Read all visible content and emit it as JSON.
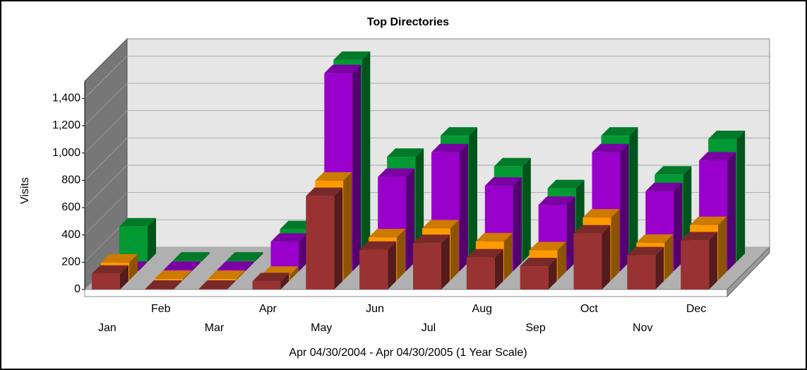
{
  "chart_data": {
    "type": "bar3d",
    "title": "Top Directories",
    "x_label": "Apr 04/30/2004 - Apr 04/30/2005 (1 Year Scale)",
    "y_label": "Visits",
    "categories": [
      "Jan",
      "Feb",
      "Mar",
      "Apr",
      "May",
      "Jun",
      "Jul",
      "Aug",
      "Sep",
      "Oct",
      "Nov",
      "Dec"
    ],
    "series": [
      {
        "color": "#993333",
        "values": [
          115,
          5,
          5,
          60,
          685,
          290,
          340,
          235,
          170,
          410,
          250,
          360
        ]
      },
      {
        "color": "#ff9900",
        "values": [
          130,
          10,
          10,
          40,
          730,
          315,
          380,
          285,
          220,
          460,
          275,
          405
        ]
      },
      {
        "color": "#9900cc",
        "values": [
          10,
          10,
          10,
          215,
          1450,
          690,
          870,
          625,
          485,
          870,
          585,
          810
        ]
      },
      {
        "color": "#009933",
        "values": [
          260,
          10,
          10,
          240,
          1480,
          770,
          925,
          700,
          540,
          925,
          640,
          900
        ]
      }
    ],
    "ylim": [
      0,
      1500
    ],
    "yticks": [
      0,
      200,
      400,
      600,
      800,
      {
        "value": 1000,
        "label": "1,000"
      },
      {
        "value": 1200,
        "label": "1,200"
      },
      {
        "value": 1400,
        "label": "1,400"
      }
    ],
    "grid": true
  }
}
